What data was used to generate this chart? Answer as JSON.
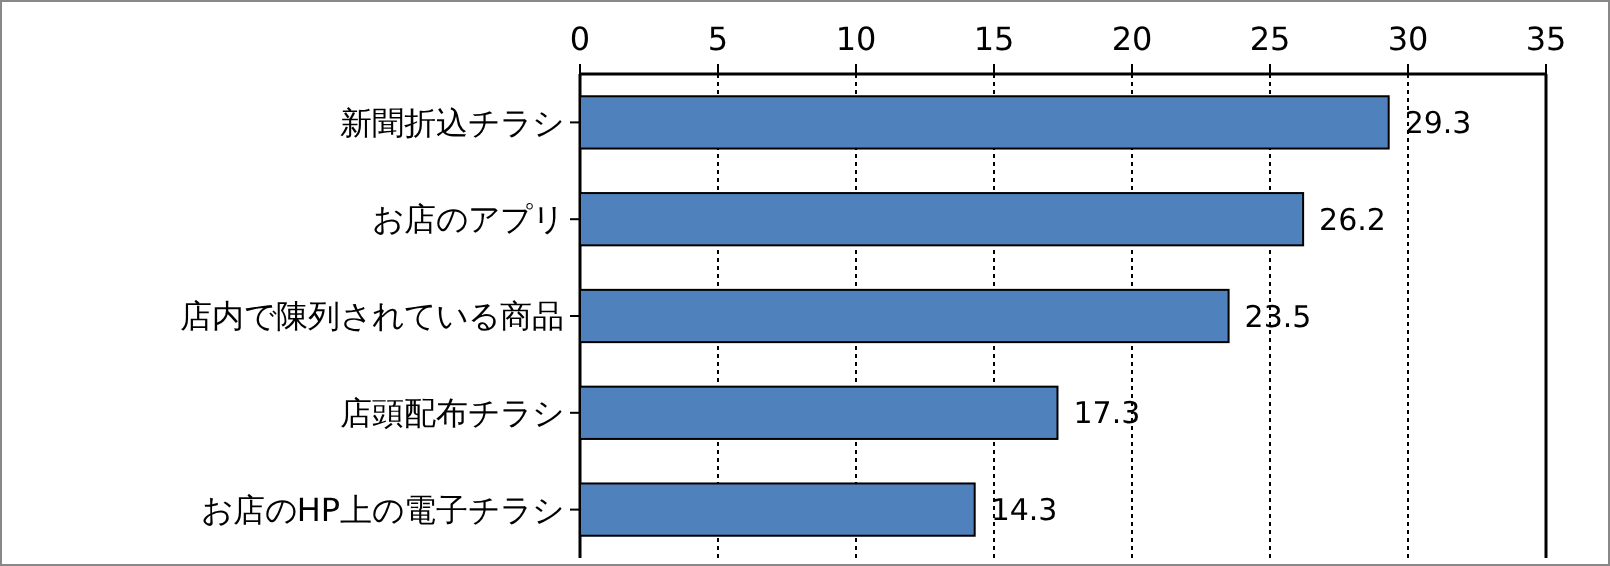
{
  "chart_data": {
    "type": "bar",
    "orientation": "horizontal",
    "categories": [
      "新聞折込チラシ",
      "お店のアプリ",
      "店内で陳列されている商品",
      "店頭配布チラシ",
      "お店のHP上の電子チラシ"
    ],
    "values": [
      29.3,
      26.2,
      23.5,
      17.3,
      14.3
    ],
    "color": "#4f81bd",
    "xlim": [
      0,
      35
    ],
    "xticks": [
      0,
      5,
      10,
      15,
      20,
      25,
      30,
      35
    ],
    "grid": "x",
    "data_labels": true
  }
}
